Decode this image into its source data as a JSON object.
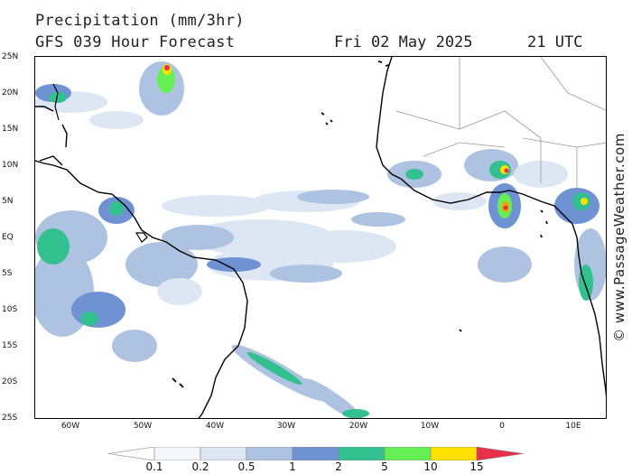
{
  "header": {
    "title": "Precipitation (mm/3hr)",
    "subtitle": "GFS 039 Hour Forecast",
    "date": "Fri 02 May 2025",
    "time": "21 UTC"
  },
  "watermark": "© www.PassageWeather.com",
  "map": {
    "lat_labels": [
      "25N",
      "20N",
      "15N",
      "10N",
      "5N",
      "EQ",
      "5S",
      "10S",
      "15S",
      "20S",
      "25S"
    ],
    "lon_labels": [
      "60W",
      "50W",
      "40W",
      "30W",
      "20W",
      "10W",
      "0",
      "10E"
    ],
    "colors": {
      "land_outline": "#000000",
      "borders": "#999999",
      "ocean": "#ffffff"
    }
  },
  "legend": {
    "labels": [
      "0.1",
      "0.2",
      "0.5",
      "1",
      "2",
      "5",
      "10",
      "15"
    ],
    "colors": [
      "#f4f6fb",
      "#dde7f3",
      "#aec3e2",
      "#6f92d3",
      "#33c08f",
      "#66ee55",
      "#ffe100",
      "#ff9a00",
      "#e8304a"
    ]
  }
}
